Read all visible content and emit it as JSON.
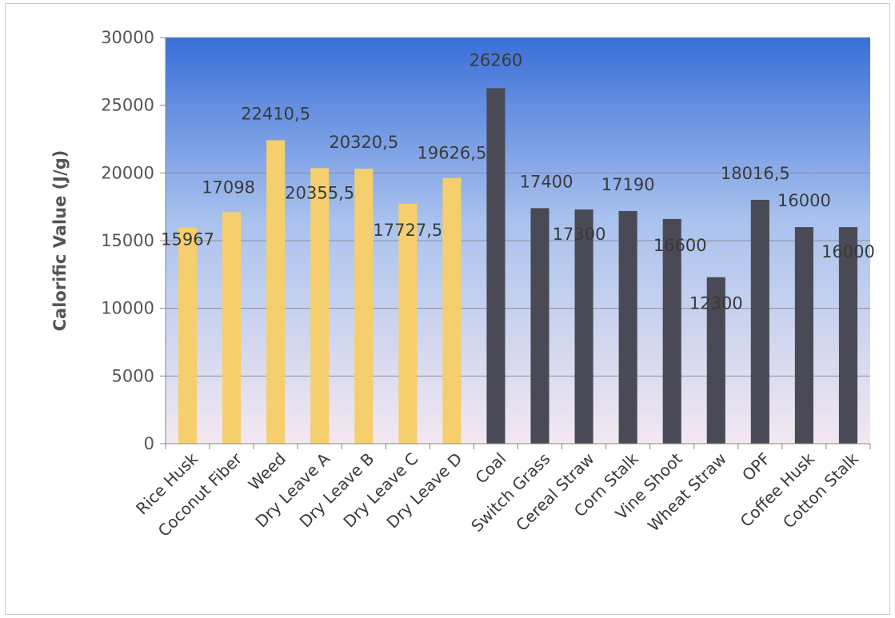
{
  "chart_data": {
    "type": "bar",
    "title": "",
    "xlabel": "",
    "ylabel": "Calorific Value (J/g)",
    "ylim": [
      0,
      30000
    ],
    "yticks": [
      "0",
      "5000",
      "10000",
      "15000",
      "20000",
      "25000",
      "30000"
    ],
    "grid": true,
    "legend": "none",
    "categories": [
      "Rice Husk",
      "Coconut Fiber",
      "Weed",
      "Dry Leave A",
      "Dry Leave B",
      "Dry Leave C",
      "Dry Leave D",
      "Coal",
      "Switch Grass",
      "Cereal Straw",
      "Corn Stalk",
      "Vine Shoot",
      "Wheat Straw",
      "OPF",
      "Coffee Husk",
      "Cotton Stalk"
    ],
    "values": [
      15967,
      17098,
      22410.5,
      20355.5,
      20320.5,
      17727.5,
      19626.5,
      26260,
      17400,
      17300,
      17190,
      16600,
      12300,
      18016.5,
      16000,
      16000
    ],
    "data_labels": [
      "15967",
      "17098",
      "22410,5",
      "20355,5",
      "20320,5",
      "17727,5",
      "19626,5",
      "26260",
      "17400",
      "17300",
      "17190",
      "16600",
      "12300",
      "18016,5",
      "16000",
      "16000"
    ],
    "bar_colors": [
      "#f5cf6e",
      "#f5cf6e",
      "#f5cf6e",
      "#f5cf6e",
      "#f5cf6e",
      "#f5cf6e",
      "#f5cf6e",
      "#4a4a56",
      "#4a4a56",
      "#4a4a56",
      "#4a4a56",
      "#4a4a56",
      "#4a4a56",
      "#4a4a56",
      "#4a4a56",
      "#4a4a56"
    ],
    "plot_background": [
      "#3a6fd8",
      "#a9c2ee",
      "#f3e8f0"
    ]
  }
}
